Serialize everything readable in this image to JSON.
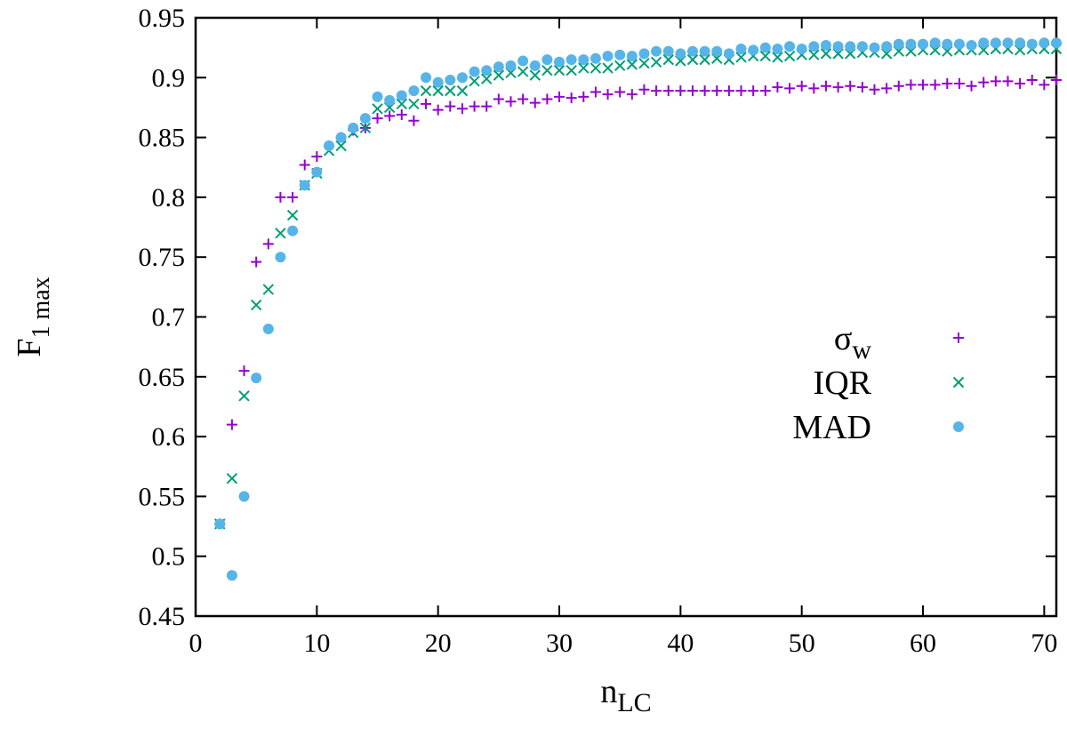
{
  "chart_data": {
    "type": "scatter",
    "title": "",
    "xlabel": {
      "base": "n",
      "sub": "LC"
    },
    "ylabel": {
      "base": "F",
      "sub": "1 max"
    },
    "xlim": [
      0,
      71
    ],
    "ylim": [
      0.45,
      0.95
    ],
    "x_ticks": [
      0,
      10,
      20,
      30,
      40,
      50,
      60,
      70
    ],
    "x_tick_labels": [
      "0",
      "10",
      "20",
      "30",
      "40",
      "50",
      "60",
      "70"
    ],
    "y_ticks": [
      0.45,
      0.5,
      0.55,
      0.6,
      0.65,
      0.7,
      0.75,
      0.8,
      0.85,
      0.9,
      0.95
    ],
    "y_tick_labels": [
      "0.45",
      "0.5",
      "0.55",
      "0.6",
      "0.65",
      "0.7",
      "0.75",
      "0.8",
      "0.85",
      "0.9",
      "0.95"
    ],
    "grid": false,
    "legend_position": "right-middle",
    "x": [
      2,
      3,
      4,
      5,
      6,
      7,
      8,
      9,
      10,
      11,
      12,
      13,
      14,
      15,
      16,
      17,
      18,
      19,
      20,
      21,
      22,
      23,
      24,
      25,
      26,
      27,
      28,
      29,
      30,
      31,
      32,
      33,
      34,
      35,
      36,
      37,
      38,
      39,
      40,
      41,
      42,
      43,
      44,
      45,
      46,
      47,
      48,
      49,
      50,
      51,
      52,
      53,
      54,
      55,
      56,
      57,
      58,
      59,
      60,
      61,
      62,
      63,
      64,
      65,
      66,
      67,
      68,
      69,
      70,
      71
    ],
    "series": [
      {
        "name": "σ",
        "name_sub": "w",
        "marker": "plus",
        "color": "#9400d3",
        "values": [
          0.527,
          0.61,
          0.655,
          0.746,
          0.761,
          0.8,
          0.8,
          0.827,
          0.834,
          0.843,
          0.85,
          0.856,
          0.858,
          0.866,
          0.868,
          0.869,
          0.864,
          0.878,
          0.873,
          0.876,
          0.874,
          0.876,
          0.876,
          0.882,
          0.88,
          0.882,
          0.879,
          0.882,
          0.884,
          0.883,
          0.884,
          0.888,
          0.886,
          0.888,
          0.886,
          0.89,
          0.889,
          0.889,
          0.889,
          0.889,
          0.889,
          0.889,
          0.889,
          0.889,
          0.889,
          0.889,
          0.892,
          0.891,
          0.893,
          0.891,
          0.893,
          0.892,
          0.893,
          0.892,
          0.89,
          0.891,
          0.893,
          0.894,
          0.894,
          0.894,
          0.895,
          0.895,
          0.893,
          0.896,
          0.897,
          0.897,
          0.895,
          0.898,
          0.894,
          0.898
        ]
      },
      {
        "name": "IQR",
        "name_sub": "",
        "marker": "cross",
        "color": "#009e73",
        "values": [
          0.527,
          0.565,
          0.634,
          0.71,
          0.723,
          0.77,
          0.785,
          0.81,
          0.82,
          0.839,
          0.843,
          0.854,
          0.858,
          0.874,
          0.875,
          0.878,
          0.878,
          0.889,
          0.889,
          0.889,
          0.889,
          0.897,
          0.899,
          0.902,
          0.904,
          0.905,
          0.902,
          0.906,
          0.906,
          0.906,
          0.908,
          0.908,
          0.908,
          0.91,
          0.911,
          0.912,
          0.913,
          0.915,
          0.914,
          0.915,
          0.915,
          0.916,
          0.915,
          0.917,
          0.918,
          0.918,
          0.917,
          0.918,
          0.919,
          0.919,
          0.92,
          0.92,
          0.92,
          0.921,
          0.921,
          0.92,
          0.922,
          0.922,
          0.923,
          0.923,
          0.922,
          0.923,
          0.923,
          0.923,
          0.924,
          0.924,
          0.923,
          0.924,
          0.924,
          0.924
        ]
      },
      {
        "name": "MAD",
        "name_sub": "",
        "marker": "circle",
        "color": "#56b4e9",
        "values": [
          0.527,
          0.484,
          0.55,
          0.649,
          0.69,
          0.75,
          0.772,
          0.81,
          0.821,
          0.843,
          0.85,
          0.858,
          0.866,
          0.884,
          0.881,
          0.885,
          0.889,
          0.9,
          0.896,
          0.898,
          0.9,
          0.905,
          0.906,
          0.909,
          0.91,
          0.914,
          0.91,
          0.915,
          0.913,
          0.915,
          0.915,
          0.916,
          0.918,
          0.919,
          0.918,
          0.92,
          0.922,
          0.922,
          0.92,
          0.922,
          0.922,
          0.922,
          0.92,
          0.924,
          0.923,
          0.925,
          0.924,
          0.926,
          0.924,
          0.926,
          0.927,
          0.926,
          0.926,
          0.926,
          0.925,
          0.926,
          0.928,
          0.928,
          0.928,
          0.929,
          0.928,
          0.928,
          0.927,
          0.929,
          0.929,
          0.929,
          0.929,
          0.928,
          0.929,
          0.929
        ]
      }
    ]
  },
  "colors": {
    "axis": "#000000",
    "background": "#ffffff"
  }
}
